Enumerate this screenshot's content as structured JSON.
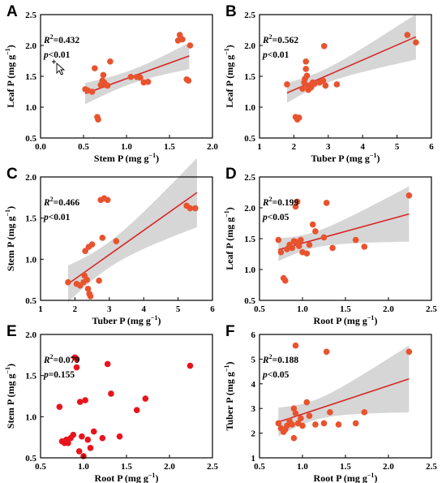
{
  "chart_data": [
    {
      "panel": "A",
      "type": "scatter",
      "xlabel": "Stem P (mg g",
      "ylabel": "Leaf P (mg g",
      "xlim": [
        0.0,
        2.0
      ],
      "ylim": [
        0.5,
        2.5
      ],
      "xticks": [
        "0.0",
        "0.5",
        "1.0",
        "1.5",
        "2.0"
      ],
      "yticks": [
        "0.5",
        "1.0",
        "1.5",
        "2.0",
        "2.5"
      ],
      "r2": "=0.432",
      "p": "<0.01",
      "fit": {
        "x1": 0.52,
        "y1": 1.22,
        "x2": 1.73,
        "y2": 1.83
      },
      "band": true,
      "point_color": "#e8532e",
      "points": [
        [
          0.52,
          1.29
        ],
        [
          0.55,
          1.27
        ],
        [
          0.6,
          1.25
        ],
        [
          0.63,
          1.63
        ],
        [
          0.66,
          0.84
        ],
        [
          0.67,
          0.8
        ],
        [
          0.7,
          1.36
        ],
        [
          0.72,
          1.43
        ],
        [
          0.73,
          1.52
        ],
        [
          0.74,
          1.4
        ],
        [
          0.76,
          1.36
        ],
        [
          0.78,
          1.35
        ],
        [
          0.81,
          1.74
        ],
        [
          1.05,
          1.49
        ],
        [
          1.12,
          1.49
        ],
        [
          1.16,
          1.48
        ],
        [
          1.2,
          1.4
        ],
        [
          1.25,
          1.41
        ],
        [
          1.6,
          2.08
        ],
        [
          1.62,
          2.17
        ],
        [
          1.65,
          2.1
        ],
        [
          1.7,
          1.45
        ],
        [
          1.72,
          1.43
        ],
        [
          1.74,
          2.0
        ]
      ]
    },
    {
      "panel": "B",
      "type": "scatter",
      "xlabel": "Tuber P (mg g",
      "ylabel": "Leaf P (mg g",
      "xlim": [
        1.0,
        6.0
      ],
      "ylim": [
        0.5,
        2.5
      ],
      "xticks": [
        "1",
        "2",
        "3",
        "4",
        "5",
        "6"
      ],
      "yticks": [
        "0.5",
        "1.0",
        "1.5",
        "2.0",
        "2.5"
      ],
      "r2": "=0.562",
      "p": "<0.01",
      "fit": {
        "x1": 1.8,
        "y1": 1.23,
        "x2": 5.55,
        "y2": 2.14
      },
      "band": true,
      "point_color": "#e8532e",
      "points": [
        [
          1.8,
          1.37
        ],
        [
          2.05,
          0.84
        ],
        [
          2.1,
          0.8
        ],
        [
          2.15,
          0.83
        ],
        [
          2.25,
          1.3
        ],
        [
          2.3,
          1.4
        ],
        [
          2.32,
          1.46
        ],
        [
          2.35,
          1.62
        ],
        [
          2.35,
          1.74
        ],
        [
          2.38,
          1.51
        ],
        [
          2.4,
          1.35
        ],
        [
          2.42,
          1.28
        ],
        [
          2.5,
          1.32
        ],
        [
          2.55,
          1.4
        ],
        [
          2.6,
          1.38
        ],
        [
          2.75,
          1.4
        ],
        [
          2.85,
          1.43
        ],
        [
          2.88,
          1.99
        ],
        [
          2.92,
          1.35
        ],
        [
          3.25,
          1.37
        ],
        [
          5.3,
          2.17
        ],
        [
          5.55,
          2.05
        ]
      ]
    },
    {
      "panel": "C",
      "type": "scatter",
      "xlabel": "Tuber P (mg g",
      "ylabel": "Stem P (mg g",
      "xlim": [
        1.0,
        6.0
      ],
      "ylim": [
        0.5,
        2.0
      ],
      "xticks": [
        "1",
        "2",
        "3",
        "4",
        "5",
        "6"
      ],
      "yticks": [
        "0.5",
        "1.0",
        "1.5",
        "2.0"
      ],
      "r2": "=0.466",
      "p": "<0.01",
      "fit": {
        "x1": 1.8,
        "y1": 0.7,
        "x2": 5.55,
        "y2": 1.81
      },
      "band": true,
      "point_color": "#e8532e",
      "points": [
        [
          1.8,
          0.72
        ],
        [
          2.05,
          0.7
        ],
        [
          2.15,
          0.68
        ],
        [
          2.25,
          0.72
        ],
        [
          2.28,
          0.8
        ],
        [
          2.3,
          1.1
        ],
        [
          2.35,
          0.75
        ],
        [
          2.38,
          0.64
        ],
        [
          2.4,
          1.15
        ],
        [
          2.42,
          0.58
        ],
        [
          2.45,
          0.55
        ],
        [
          2.5,
          1.18
        ],
        [
          2.7,
          0.74
        ],
        [
          2.75,
          1.72
        ],
        [
          2.8,
          1.26
        ],
        [
          2.85,
          1.74
        ],
        [
          2.95,
          1.72
        ],
        [
          3.2,
          1.22
        ],
        [
          5.25,
          1.65
        ],
        [
          5.35,
          1.62
        ],
        [
          5.5,
          1.62
        ]
      ]
    },
    {
      "panel": "D",
      "type": "scatter",
      "xlabel": "Root P (mg g",
      "ylabel": "Leaf P (mg g",
      "xlim": [
        0.5,
        2.5
      ],
      "ylim": [
        0.5,
        2.5
      ],
      "xticks": [
        "0.5",
        "1.0",
        "1.5",
        "2.0",
        "2.5"
      ],
      "yticks": [
        "0.5",
        "1.0",
        "1.5",
        "2.0",
        "2.5"
      ],
      "r2": "=0.199",
      "p": "<0.05",
      "fit": {
        "x1": 0.72,
        "y1": 1.32,
        "x2": 2.24,
        "y2": 1.9
      },
      "band": true,
      "point_color": "#e8532e",
      "points": [
        [
          0.72,
          1.48
        ],
        [
          0.75,
          1.28
        ],
        [
          0.78,
          0.86
        ],
        [
          0.8,
          0.82
        ],
        [
          0.82,
          1.33
        ],
        [
          0.85,
          1.4
        ],
        [
          0.88,
          1.35
        ],
        [
          0.9,
          1.46
        ],
        [
          0.92,
          1.45
        ],
        [
          0.92,
          2.02
        ],
        [
          0.94,
          2.1
        ],
        [
          0.95,
          1.42
        ],
        [
          0.96,
          1.38
        ],
        [
          0.98,
          1.48
        ],
        [
          1.0,
          1.28
        ],
        [
          1.05,
          1.26
        ],
        [
          1.08,
          1.4
        ],
        [
          1.12,
          1.73
        ],
        [
          1.15,
          1.62
        ],
        [
          1.25,
          1.52
        ],
        [
          1.28,
          2.08
        ],
        [
          1.35,
          1.35
        ],
        [
          1.62,
          1.48
        ],
        [
          1.72,
          1.37
        ],
        [
          2.24,
          2.2
        ]
      ]
    },
    {
      "panel": "E",
      "type": "scatter",
      "xlabel": "Root P (mg g",
      "ylabel": "Stem P (mg g",
      "xlim": [
        0.5,
        2.5
      ],
      "ylim": [
        0.5,
        2.0
      ],
      "xticks": [
        "0.5",
        "1.0",
        "1.5",
        "2.0",
        "2.5"
      ],
      "yticks": [
        "0.5",
        "1.0",
        "1.5",
        "2.0"
      ],
      "r2": "=0.079",
      "p": "=0.155",
      "fit": null,
      "band": false,
      "point_color": "#e8131c",
      "points": [
        [
          0.72,
          1.12
        ],
        [
          0.75,
          0.7
        ],
        [
          0.78,
          0.68
        ],
        [
          0.8,
          0.72
        ],
        [
          0.82,
          0.68
        ],
        [
          0.85,
          0.74
        ],
        [
          0.88,
          0.78
        ],
        [
          0.9,
          1.72
        ],
        [
          0.92,
          1.6
        ],
        [
          0.92,
          1.7
        ],
        [
          0.95,
          0.58
        ],
        [
          0.96,
          1.18
        ],
        [
          0.98,
          0.76
        ],
        [
          1.0,
          0.52
        ],
        [
          1.02,
          1.2
        ],
        [
          1.05,
          0.72
        ],
        [
          1.08,
          0.62
        ],
        [
          1.12,
          0.82
        ],
        [
          1.22,
          0.74
        ],
        [
          1.28,
          1.64
        ],
        [
          1.32,
          1.28
        ],
        [
          1.42,
          0.76
        ],
        [
          1.62,
          1.08
        ],
        [
          1.72,
          1.22
        ],
        [
          2.24,
          1.62
        ]
      ]
    },
    {
      "panel": "F",
      "type": "scatter",
      "xlabel": "Root P (mg g",
      "ylabel": "Tuber P (mg g",
      "xlim": [
        0.5,
        2.5
      ],
      "ylim": [
        1.0,
        6.0
      ],
      "xticks": [
        "0.5",
        "1.0",
        "1.5",
        "2.0",
        "2.5"
      ],
      "yticks": [
        "1",
        "2",
        "3",
        "4",
        "5",
        "6"
      ],
      "r2": "=0.188",
      "p": "<0.05",
      "fit": {
        "x1": 0.72,
        "y1": 2.45,
        "x2": 2.24,
        "y2": 4.2
      },
      "band": true,
      "point_color": "#e8532e",
      "points": [
        [
          0.72,
          2.4
        ],
        [
          0.75,
          2.2
        ],
        [
          0.78,
          2.05
        ],
        [
          0.8,
          2.15
        ],
        [
          0.82,
          2.3
        ],
        [
          0.85,
          2.5
        ],
        [
          0.88,
          2.35
        ],
        [
          0.9,
          3.0
        ],
        [
          0.9,
          1.8
        ],
        [
          0.92,
          2.8
        ],
        [
          0.92,
          5.55
        ],
        [
          0.95,
          2.4
        ],
        [
          0.98,
          2.6
        ],
        [
          1.0,
          2.3
        ],
        [
          1.05,
          3.25
        ],
        [
          1.08,
          2.7
        ],
        [
          1.15,
          2.35
        ],
        [
          1.25,
          2.4
        ],
        [
          1.28,
          5.3
        ],
        [
          1.32,
          2.85
        ],
        [
          1.42,
          2.35
        ],
        [
          1.62,
          2.4
        ],
        [
          1.72,
          2.85
        ],
        [
          2.24,
          5.3
        ]
      ]
    }
  ],
  "panels": [
    "A",
    "B",
    "C",
    "D",
    "E",
    "F"
  ],
  "unit_exp": "−1",
  "colors": {
    "fit_line": "#d62728",
    "band": "#c8c8c8"
  }
}
